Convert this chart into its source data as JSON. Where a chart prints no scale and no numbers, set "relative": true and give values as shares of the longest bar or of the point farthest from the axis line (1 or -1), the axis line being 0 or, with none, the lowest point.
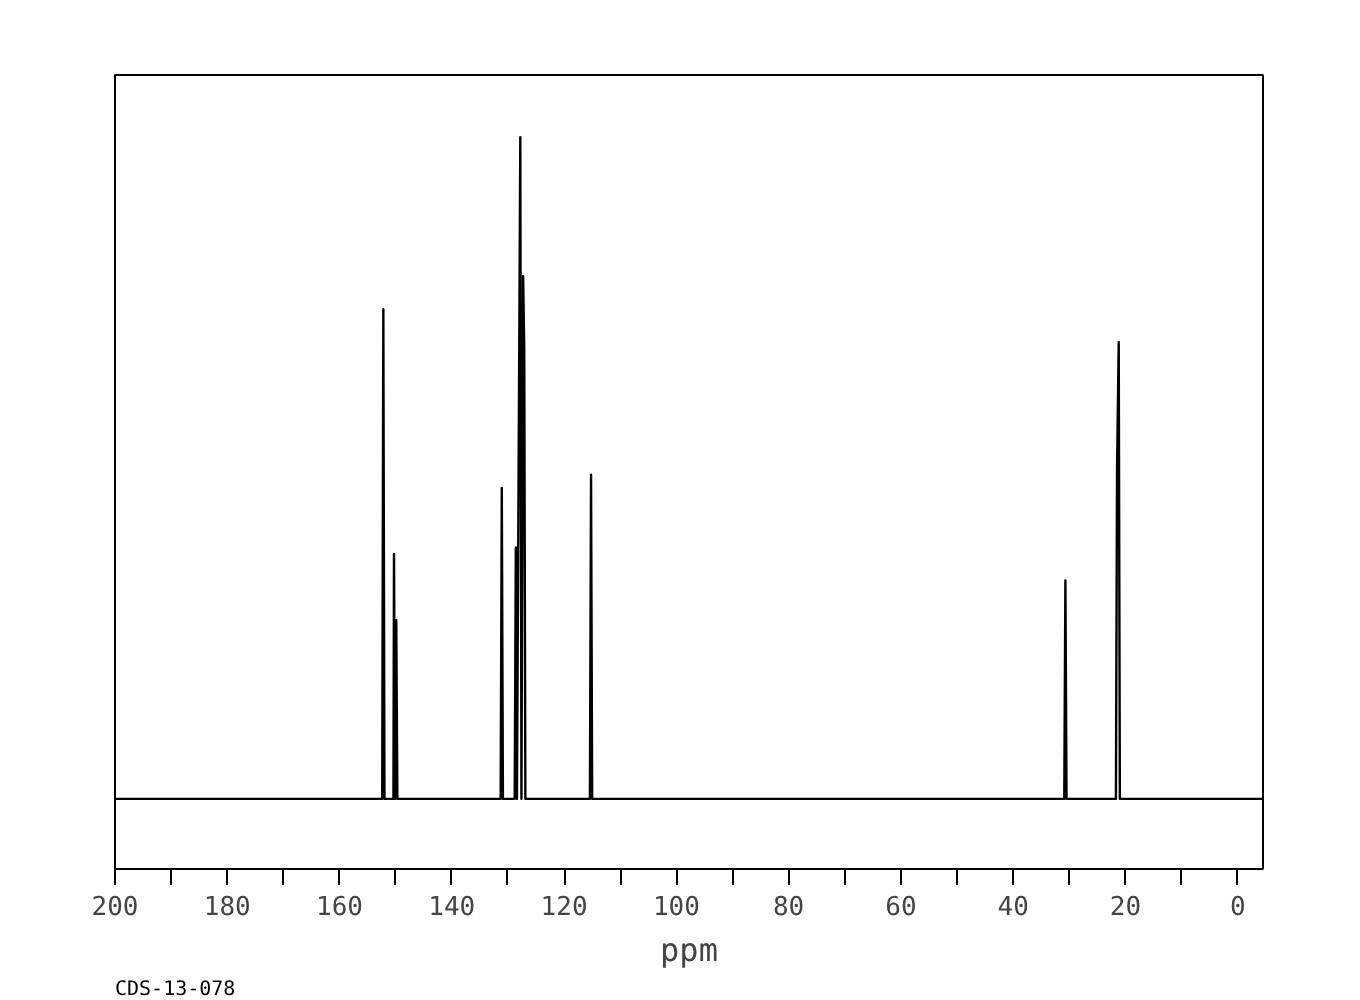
{
  "chart_data": {
    "type": "line",
    "relative": true,
    "xlabel": "ppm",
    "annotations": [
      "CDS-13-078"
    ],
    "xlim": [
      200,
      -4.5
    ],
    "xticks": [
      200,
      180,
      160,
      140,
      120,
      100,
      80,
      60,
      40,
      20,
      0
    ],
    "grid": false,
    "series": [
      {
        "color": "#000000",
        "x": [
          200,
          152.4,
          152.2,
          152.0,
          150.4,
          150.3,
          150.1,
          149.9,
          149.7,
          131.3,
          131.1,
          130.9,
          128.8,
          128.6,
          128.4,
          127.8,
          127.6,
          127.3,
          127.1,
          126.9,
          115.4,
          115.2,
          115.0,
          30.9,
          30.7,
          30.5,
          21.7,
          21.5,
          21.2,
          21.0,
          -4.5
        ],
        "values": [
          0,
          0,
          0.74,
          0,
          0,
          0.37,
          0,
          0.27,
          0,
          0,
          0.47,
          0,
          0,
          0.38,
          0,
          1.0,
          0,
          0.79,
          0.68,
          0,
          0,
          0.49,
          0,
          0,
          0.33,
          0,
          0,
          0.5,
          0.69,
          0,
          0
        ]
      }
    ]
  }
}
